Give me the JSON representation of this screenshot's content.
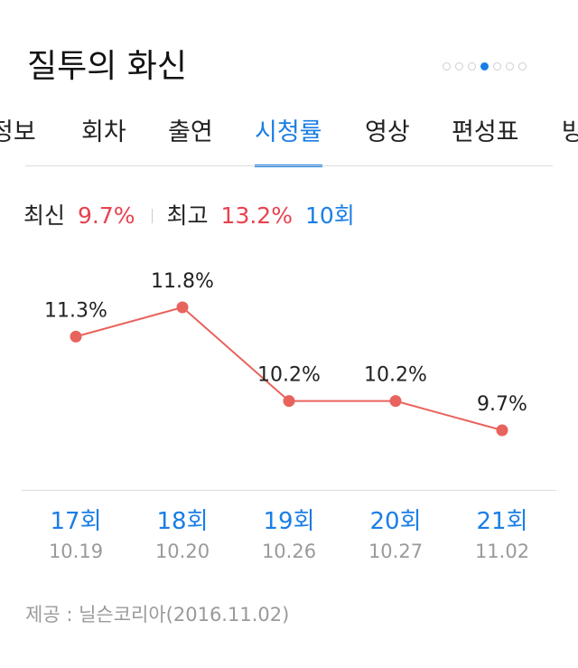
{
  "title": "질투의 화신",
  "pager": {
    "count": 7,
    "active_index": 3
  },
  "tabs": [
    {
      "label": "정보",
      "active": false
    },
    {
      "label": "회차",
      "active": false
    },
    {
      "label": "출연",
      "active": false
    },
    {
      "label": "시청률",
      "active": true
    },
    {
      "label": "영상",
      "active": false
    },
    {
      "label": "편성표",
      "active": false
    },
    {
      "label": "방",
      "active": false
    }
  ],
  "summary": {
    "latest_label": "최신",
    "latest_value": "9.7%",
    "best_label": "최고",
    "best_value": "13.2%",
    "best_episode": "10회"
  },
  "chart_data": {
    "type": "line",
    "categories": [
      "17회",
      "18회",
      "19회",
      "20회",
      "21회"
    ],
    "dates": [
      "10.19",
      "10.20",
      "10.26",
      "10.27",
      "11.02"
    ],
    "values": [
      11.3,
      11.8,
      10.2,
      10.2,
      9.7
    ],
    "value_labels": [
      "11.3%",
      "11.8%",
      "10.2%",
      "10.2%",
      "9.7%"
    ],
    "line_color": "#e8635d",
    "grid": false
  },
  "source": "제공 : 닐슨코리아(2016.11.02)",
  "colors": {
    "accent": "#1a7ee6",
    "highlight": "#e8424f",
    "muted": "#9a9a9a"
  }
}
